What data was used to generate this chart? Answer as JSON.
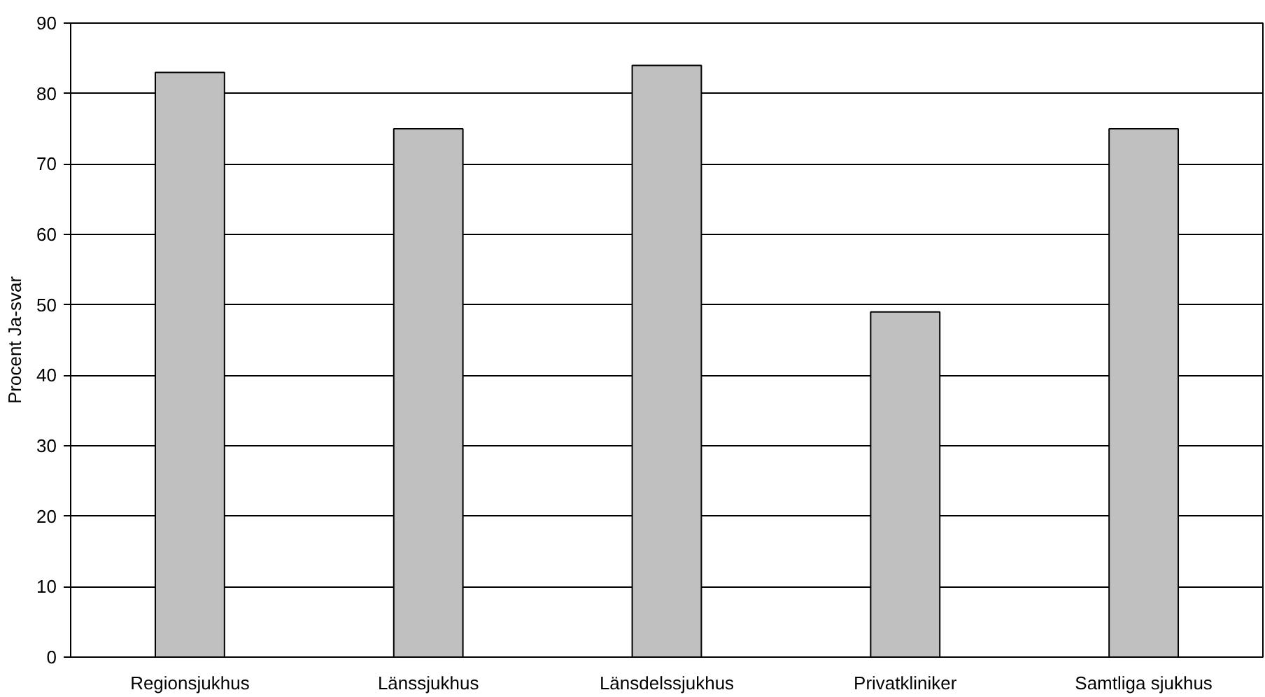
{
  "chart_data": {
    "type": "bar",
    "ylabel": "Procent Ja-svar",
    "categories": [
      "Regionsjukhus",
      "Länssjukhus",
      "Länsdelssjukhus",
      "Privatkliniker",
      "Samtliga sjukhus"
    ],
    "values": [
      83,
      75,
      84,
      49,
      75
    ],
    "color": "#c0c0c0",
    "ylim": [
      0,
      90
    ],
    "yticks": [
      0,
      10,
      20,
      30,
      40,
      50,
      60,
      70,
      80,
      90
    ],
    "grid": "y"
  }
}
